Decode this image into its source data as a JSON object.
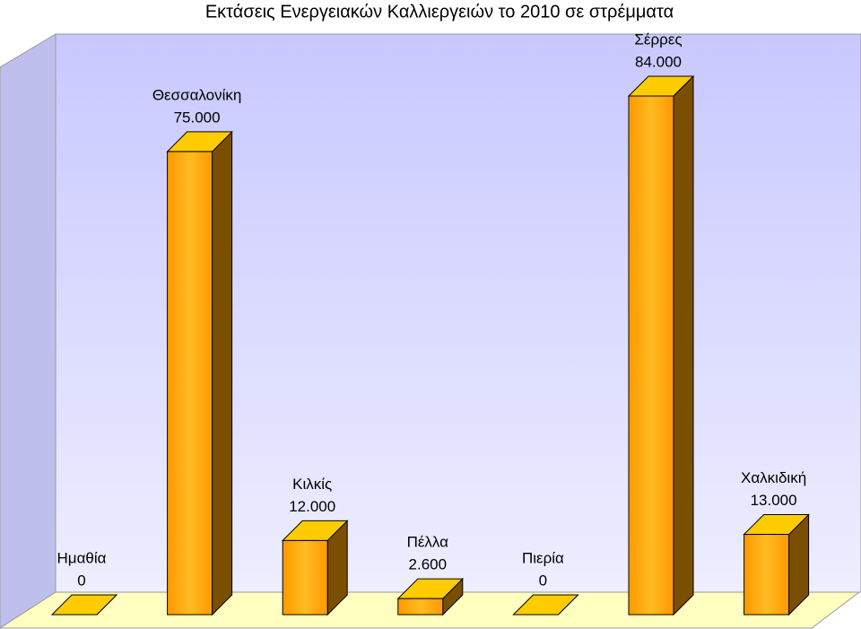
{
  "chart_data": {
    "type": "bar3d",
    "title": "Εκτάσεις Ενεργειακών Καλλιεργειών το 2010 σε στρέμματα",
    "categories": [
      "Ημαθία",
      "Θεσσαλονίκη",
      "Κιλκίς",
      "Πέλλα",
      "Πιερία",
      "Σέρρες",
      "Χαλκιδική"
    ],
    "values": [
      0,
      75000,
      12000,
      2600,
      0,
      84000,
      13000
    ],
    "value_labels": [
      "0",
      "75.000",
      "12.000",
      "2.600",
      "0",
      "84.000",
      "13.000"
    ],
    "color": "#ff9900"
  }
}
